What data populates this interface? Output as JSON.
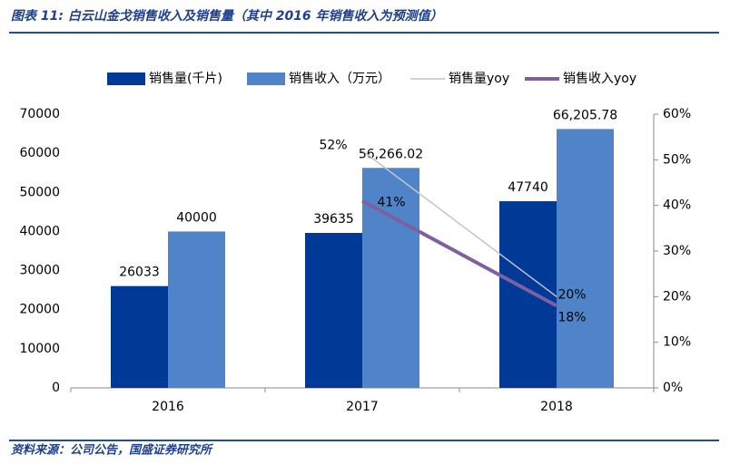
{
  "chart_data": {
    "type": "bar",
    "title": "图表 11: 白云山金戈销售收入及销售量（其中 2016 年销售收入为预测值）",
    "source": "资料来源：公司公告，国盛证券研究所",
    "categories": [
      "2016",
      "2017",
      "2018"
    ],
    "series": [
      {
        "name": "销售量(千片)",
        "color": "#003a96",
        "values": [
          26033,
          39635,
          47740
        ]
      },
      {
        "name": "销售收入（万元）",
        "color": "#4f85c8",
        "values": [
          40000,
          56266.02,
          66205.78
        ],
        "value_labels": [
          "40000",
          "56,266.02",
          "66,205.78"
        ]
      },
      {
        "name": "销售量yoy",
        "type": "line",
        "axis": "y2",
        "color": "#c4c4c4",
        "values": [
          null,
          52,
          20
        ],
        "value_labels": [
          null,
          "52%",
          "20%"
        ]
      },
      {
        "name": "销售收入yoy",
        "type": "line",
        "axis": "y2",
        "color": "#7e5fa0",
        "values": [
          null,
          41,
          18
        ],
        "value_labels": [
          null,
          "41%",
          "18%"
        ]
      }
    ],
    "ylim": [
      0,
      70000
    ],
    "yticks": [
      0,
      10000,
      20000,
      30000,
      40000,
      50000,
      60000,
      70000
    ],
    "y2lim": [
      0,
      60
    ],
    "y2ticks": [
      {
        "value": 0,
        "label": "0%"
      },
      {
        "value": 10,
        "label": "10%"
      },
      {
        "value": 20,
        "label": "20%"
      },
      {
        "value": 30,
        "label": "30%"
      },
      {
        "value": 40,
        "label": "40%"
      },
      {
        "value": 50,
        "label": "50%"
      },
      {
        "value": 60,
        "label": "60%"
      }
    ],
    "legend": "top",
    "grid": false
  }
}
